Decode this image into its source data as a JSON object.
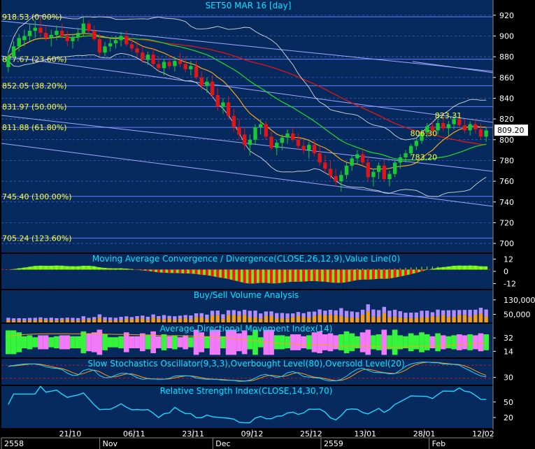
{
  "colors": {
    "background": "#062a5e",
    "panel_border": "#000000",
    "grid": "#6d7cff",
    "price_up": "#19c832",
    "price_down": "#e01515",
    "ma_red": "#e01515",
    "ma_green": "#22dd22",
    "ma_orange": "#f2a818",
    "bollinger": "#d8d8d8",
    "trendline": "#9fa8ff",
    "macd_pos": "#7cff1a",
    "macd_neg": "#ff1515",
    "volume_buy": "#b08cff",
    "volume_sell": "#f59b18",
    "adx_pink": "#ff7dff",
    "adx_green": "#39ff39",
    "stoch_orange": "#ff9a18",
    "stoch_cyan": "#22d7ff",
    "rsi_cyan": "#22d7ff",
    "axis_text": "#ffffff",
    "fib_text": "#ffff33",
    "title_text": "#00e5ff"
  },
  "chart_data": [
    {
      "panel": "price",
      "type": "candlestick",
      "title": "SET50 MAR 16  [day]",
      "y_ticks": [
        700,
        720,
        740,
        760,
        780,
        800,
        820,
        840,
        860,
        880,
        900,
        920
      ],
      "ylim": [
        694,
        932
      ],
      "last_price": "809.20",
      "fib_levels": [
        {
          "label": "918.53 (0.00%)",
          "value": 918.53
        },
        {
          "label": "877.67 (23.60%)",
          "value": 877.67
        },
        {
          "label": "852.05 (38.20%)",
          "value": 852.05
        },
        {
          "label": "831.97 (50.00%)",
          "value": 831.97
        },
        {
          "label": "811.88 (61.80%)",
          "value": 811.88
        },
        {
          "label": "745.40 (100.00%)",
          "value": 745.4
        },
        {
          "label": "705.24 (123.60%)",
          "value": 705.24
        }
      ],
      "annotations": [
        {
          "text": "823.31",
          "x": 91,
          "y": 823.31
        },
        {
          "text": "806.30",
          "x": 86,
          "y": 806.3
        },
        {
          "text": "783.20",
          "x": 86,
          "y": 783.2
        }
      ],
      "candles": [
        [
          870,
          885,
          865,
          880
        ],
        [
          880,
          895,
          878,
          890
        ],
        [
          890,
          902,
          885,
          898
        ],
        [
          896,
          906,
          890,
          900
        ],
        [
          900,
          912,
          895,
          905
        ],
        [
          905,
          915,
          898,
          908
        ],
        [
          908,
          918,
          900,
          903
        ],
        [
          903,
          910,
          895,
          898
        ],
        [
          898,
          906,
          890,
          901
        ],
        [
          901,
          910,
          896,
          905
        ],
        [
          905,
          912,
          898,
          900
        ],
        [
          900,
          905,
          890,
          895
        ],
        [
          895,
          902,
          888,
          899
        ],
        [
          899,
          908,
          895,
          903
        ],
        [
          903,
          918,
          900,
          912
        ],
        [
          912,
          915,
          902,
          905
        ],
        [
          905,
          910,
          895,
          897
        ],
        [
          897,
          902,
          880,
          884
        ],
        [
          884,
          894,
          880,
          890
        ],
        [
          890,
          898,
          885,
          893
        ],
        [
          893,
          900,
          888,
          896
        ],
        [
          896,
          904,
          890,
          900
        ],
        [
          900,
          905,
          890,
          892
        ],
        [
          892,
          898,
          885,
          888
        ],
        [
          888,
          895,
          880,
          884
        ],
        [
          884,
          890,
          874,
          877
        ],
        [
          877,
          885,
          872,
          882
        ],
        [
          882,
          888,
          870,
          873
        ],
        [
          873,
          880,
          866,
          869
        ],
        [
          869,
          878,
          862,
          875
        ],
        [
          875,
          882,
          868,
          871
        ],
        [
          871,
          879,
          866,
          876
        ],
        [
          876,
          884,
          870,
          873
        ],
        [
          873,
          880,
          865,
          868
        ],
        [
          868,
          876,
          862,
          871
        ],
        [
          871,
          876,
          858,
          860
        ],
        [
          860,
          866,
          848,
          852
        ],
        [
          852,
          860,
          845,
          856
        ],
        [
          856,
          862,
          840,
          843
        ],
        [
          843,
          850,
          828,
          832
        ],
        [
          832,
          840,
          825,
          836
        ],
        [
          836,
          842,
          820,
          823
        ],
        [
          823,
          830,
          808,
          812
        ],
        [
          812,
          820,
          800,
          805
        ],
        [
          805,
          812,
          790,
          795
        ],
        [
          795,
          805,
          785,
          800
        ],
        [
          800,
          815,
          795,
          812
        ],
        [
          812,
          820,
          805,
          815
        ],
        [
          815,
          818,
          800,
          803
        ],
        [
          803,
          808,
          790,
          792
        ],
        [
          792,
          800,
          785,
          797
        ],
        [
          797,
          805,
          790,
          802
        ],
        [
          802,
          810,
          796,
          806
        ],
        [
          806,
          812,
          798,
          800
        ],
        [
          800,
          806,
          790,
          794
        ],
        [
          794,
          800,
          786,
          790
        ],
        [
          790,
          798,
          782,
          795
        ],
        [
          795,
          800,
          784,
          787
        ],
        [
          787,
          794,
          775,
          778
        ],
        [
          778,
          785,
          768,
          772
        ],
        [
          772,
          780,
          762,
          765
        ],
        [
          765,
          772,
          755,
          760
        ],
        [
          760,
          770,
          750,
          766
        ],
        [
          766,
          778,
          762,
          775
        ],
        [
          775,
          785,
          770,
          782
        ],
        [
          782,
          790,
          776,
          786
        ],
        [
          786,
          792,
          775,
          778
        ],
        [
          778,
          784,
          760,
          764
        ],
        [
          764,
          772,
          755,
          769
        ],
        [
          769,
          778,
          762,
          775
        ],
        [
          775,
          780,
          760,
          762
        ],
        [
          762,
          770,
          755,
          767
        ],
        [
          767,
          780,
          764,
          778
        ],
        [
          778,
          786,
          772,
          783
        ],
        [
          783,
          790,
          778,
          787
        ],
        [
          787,
          796,
          784,
          794
        ],
        [
          794,
          802,
          790,
          799
        ],
        [
          799,
          810,
          796,
          807
        ],
        [
          807,
          816,
          802,
          813
        ],
        [
          813,
          818,
          806,
          809
        ],
        [
          809,
          820,
          805,
          816
        ],
        [
          816,
          822,
          808,
          811
        ],
        [
          811,
          818,
          804,
          815
        ],
        [
          815,
          824,
          810,
          820
        ],
        [
          820,
          826,
          812,
          814
        ],
        [
          814,
          820,
          806,
          809
        ],
        [
          809,
          818,
          804,
          815
        ],
        [
          815,
          820,
          806,
          810
        ],
        [
          810,
          816,
          800,
          803
        ],
        [
          803,
          812,
          798,
          809
        ]
      ]
    },
    {
      "panel": "macd",
      "type": "bar",
      "title": "Moving Average Convergence / Divergence(CLOSE,26,12,9),Value Line(0)",
      "y_ticks": [
        "12",
        "0",
        "-12"
      ]
    },
    {
      "panel": "volume",
      "type": "bar",
      "title": "Buy/Sell Volume Analysis",
      "y_ticks": [
        "130,000",
        "50,000"
      ]
    },
    {
      "panel": "adx",
      "type": "area",
      "title": "Average Directional Movement Index(14)",
      "y_ticks": [
        "32",
        "14"
      ]
    },
    {
      "panel": "stochastic",
      "type": "line",
      "title": "Slow Stochastics Oscillator(9,3,3),Overbought Level(80),Oversold Level(20)",
      "y_ticks": [
        "30"
      ]
    },
    {
      "panel": "rsi",
      "type": "line",
      "title": "Relative Strength Index(CLOSE,14,30,70)",
      "y_ticks": [
        "50",
        "20"
      ]
    }
  ],
  "x_axis": {
    "date_labels": [
      "21/10",
      "06/11",
      "23/11",
      "09/12",
      "25/12",
      "13/01",
      "28/01",
      "12/02"
    ],
    "period_labels": [
      "2558",
      "Nov",
      "Dec",
      "2559",
      "Feb"
    ]
  }
}
